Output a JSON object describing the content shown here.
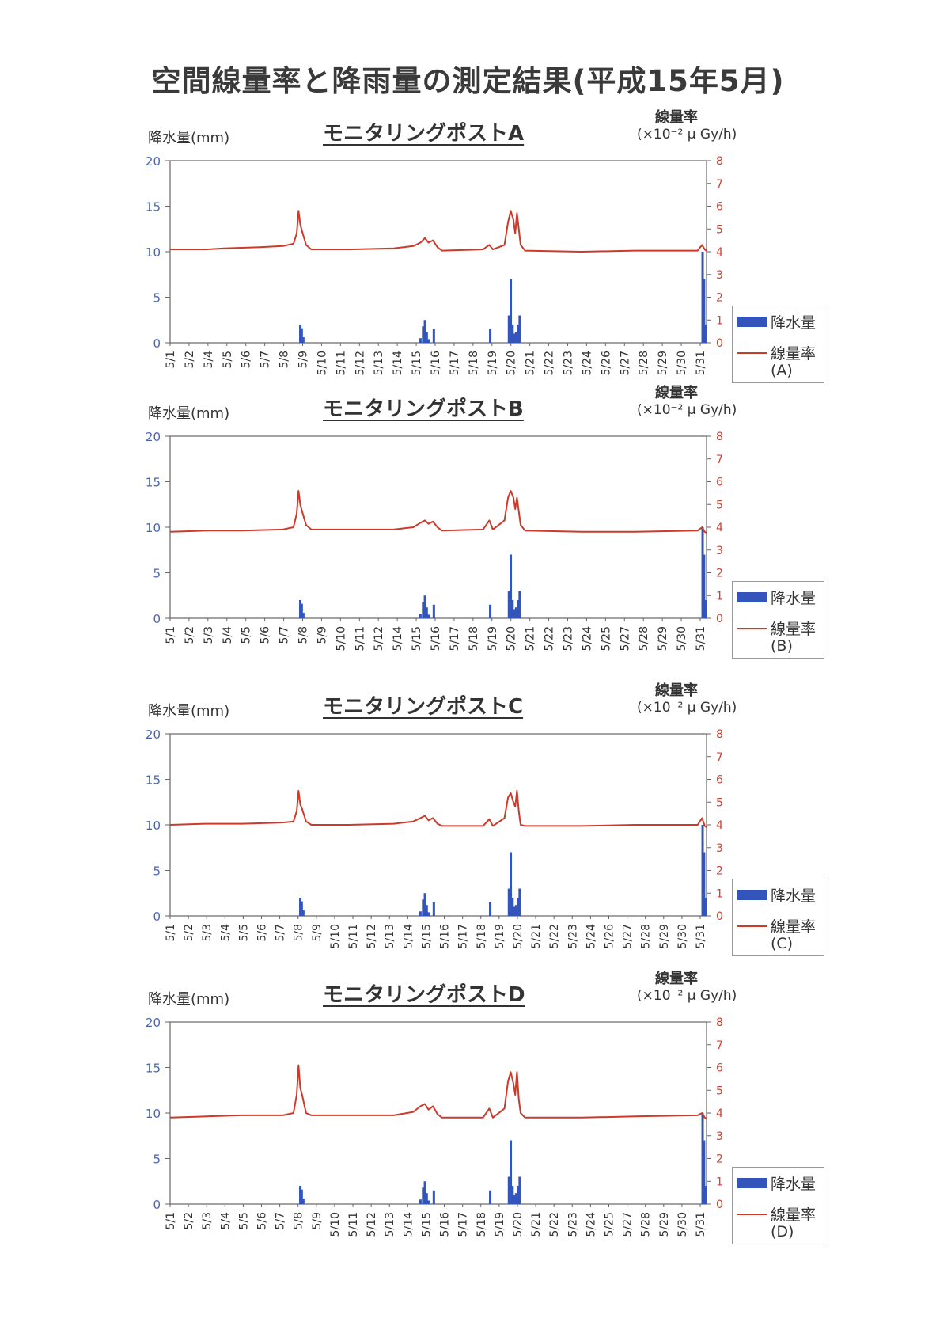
{
  "title": "空間線量率と降雨量の測定結果(平成15年5月)",
  "left_axis_label": "降水量(mm)",
  "right_axis_label": "線量率",
  "right_axis_unit": "(×10⁻² μ Gy/h)",
  "legend_rain": "降水量",
  "legend_dose": "線量率",
  "colors": {
    "rain": "#3355bb",
    "dose": "#cc3a2a",
    "left_ticks": "#4466bb",
    "right_ticks": "#cc4433"
  },
  "chart_data": [
    {
      "type": "bar+line",
      "title": "モニタリングポストA",
      "legend_tag": "(A)",
      "categories": [
        "5/1",
        "5/2",
        "5/4",
        "5/5",
        "5/6",
        "5/7",
        "5/8",
        "5/9",
        "5/10",
        "5/11",
        "5/12",
        "5/13",
        "5/14",
        "5/15",
        "5/16",
        "5/17",
        "5/18",
        "5/19",
        "5/20",
        "5/21",
        "5/22",
        "5/23",
        "5/24",
        "5/26",
        "5/27",
        "5/28",
        "5/29",
        "5/30",
        "5/31"
      ],
      "left_ylim": [
        0,
        20
      ],
      "left_ticks": [
        0,
        5,
        10,
        15,
        20
      ],
      "right_ylim": [
        0,
        8
      ],
      "right_ticks": [
        0,
        1,
        2,
        3,
        4,
        5,
        6,
        7,
        8
      ],
      "grid": false,
      "legend": "right",
      "rain_bars": [
        {
          "x": 7.28,
          "v": 2
        },
        {
          "x": 7.36,
          "v": 1.6
        },
        {
          "x": 7.45,
          "v": 0.6
        },
        {
          "x": 14.0,
          "v": 0.5
        },
        {
          "x": 14.15,
          "v": 1.8
        },
        {
          "x": 14.25,
          "v": 2.5
        },
        {
          "x": 14.35,
          "v": 1.2
        },
        {
          "x": 14.45,
          "v": 0.4
        },
        {
          "x": 14.75,
          "v": 1.5
        },
        {
          "x": 17.9,
          "v": 1.5
        },
        {
          "x": 18.95,
          "v": 3
        },
        {
          "x": 19.05,
          "v": 7
        },
        {
          "x": 19.15,
          "v": 2
        },
        {
          "x": 19.25,
          "v": 1
        },
        {
          "x": 19.35,
          "v": 1.2
        },
        {
          "x": 19.45,
          "v": 2
        },
        {
          "x": 19.55,
          "v": 3
        },
        {
          "x": 29.78,
          "v": 10
        },
        {
          "x": 29.86,
          "v": 7
        },
        {
          "x": 29.93,
          "v": 2
        }
      ],
      "dose_line": [
        [
          0.0,
          4.1
        ],
        [
          2.0,
          4.1
        ],
        [
          3.0,
          4.15
        ],
        [
          5.0,
          4.2
        ],
        [
          6.3,
          4.25
        ],
        [
          6.9,
          4.35
        ],
        [
          7.08,
          4.8
        ],
        [
          7.18,
          5.8
        ],
        [
          7.28,
          5.2
        ],
        [
          7.38,
          4.9
        ],
        [
          7.6,
          4.3
        ],
        [
          7.9,
          4.1
        ],
        [
          10.0,
          4.1
        ],
        [
          12.5,
          4.15
        ],
        [
          13.6,
          4.25
        ],
        [
          14.0,
          4.4
        ],
        [
          14.25,
          4.6
        ],
        [
          14.45,
          4.4
        ],
        [
          14.7,
          4.5
        ],
        [
          14.95,
          4.2
        ],
        [
          15.2,
          4.05
        ],
        [
          17.5,
          4.1
        ],
        [
          17.85,
          4.3
        ],
        [
          18.05,
          4.1
        ],
        [
          18.7,
          4.3
        ],
        [
          18.9,
          5.3
        ],
        [
          19.05,
          5.8
        ],
        [
          19.2,
          5.4
        ],
        [
          19.3,
          4.8
        ],
        [
          19.4,
          5.7
        ],
        [
          19.5,
          5.0
        ],
        [
          19.6,
          4.3
        ],
        [
          19.85,
          4.05
        ],
        [
          23.0,
          4.0
        ],
        [
          26.0,
          4.05
        ],
        [
          29.5,
          4.05
        ],
        [
          29.75,
          4.3
        ],
        [
          29.9,
          4.1
        ],
        [
          30.0,
          4.05
        ]
      ]
    },
    {
      "type": "bar+line",
      "title": "モニタリングポストB",
      "legend_tag": "(B)",
      "categories": [
        "5/1",
        "5/2",
        "5/3",
        "5/4",
        "5/5",
        "5/6",
        "5/7",
        "5/8",
        "5/9",
        "5/10",
        "5/11",
        "5/12",
        "5/14",
        "5/15",
        "5/16",
        "5/17",
        "5/18",
        "5/19",
        "5/20",
        "5/21",
        "5/22",
        "5/23",
        "5/24",
        "5/25",
        "5/27",
        "5/28",
        "5/29",
        "5/30",
        "5/31"
      ],
      "left_ylim": [
        0,
        20
      ],
      "left_ticks": [
        0,
        5,
        10,
        15,
        20
      ],
      "right_ylim": [
        0,
        8
      ],
      "right_ticks": [
        0,
        1,
        2,
        3,
        4,
        5,
        6,
        7,
        8
      ],
      "grid": false,
      "legend": "right",
      "rain_bars": [
        {
          "x": 7.28,
          "v": 2
        },
        {
          "x": 7.36,
          "v": 1.6
        },
        {
          "x": 7.45,
          "v": 0.6
        },
        {
          "x": 14.0,
          "v": 0.5
        },
        {
          "x": 14.15,
          "v": 1.8
        },
        {
          "x": 14.25,
          "v": 2.5
        },
        {
          "x": 14.35,
          "v": 1.2
        },
        {
          "x": 14.45,
          "v": 0.4
        },
        {
          "x": 14.75,
          "v": 1.5
        },
        {
          "x": 17.9,
          "v": 1.5
        },
        {
          "x": 18.95,
          "v": 3
        },
        {
          "x": 19.05,
          "v": 7
        },
        {
          "x": 19.15,
          "v": 2
        },
        {
          "x": 19.25,
          "v": 1
        },
        {
          "x": 19.35,
          "v": 1.2
        },
        {
          "x": 19.45,
          "v": 2
        },
        {
          "x": 19.55,
          "v": 3
        },
        {
          "x": 29.78,
          "v": 10
        },
        {
          "x": 29.86,
          "v": 7
        },
        {
          "x": 29.93,
          "v": 2
        }
      ],
      "dose_line": [
        [
          0.0,
          3.8
        ],
        [
          2.0,
          3.85
        ],
        [
          4.0,
          3.85
        ],
        [
          6.3,
          3.9
        ],
        [
          6.9,
          4.0
        ],
        [
          7.08,
          4.6
        ],
        [
          7.18,
          5.6
        ],
        [
          7.28,
          5.0
        ],
        [
          7.38,
          4.7
        ],
        [
          7.6,
          4.1
        ],
        [
          7.9,
          3.9
        ],
        [
          10.0,
          3.9
        ],
        [
          12.5,
          3.9
        ],
        [
          13.6,
          4.0
        ],
        [
          14.0,
          4.2
        ],
        [
          14.25,
          4.3
        ],
        [
          14.45,
          4.15
        ],
        [
          14.7,
          4.25
        ],
        [
          14.95,
          4.0
        ],
        [
          15.2,
          3.85
        ],
        [
          17.5,
          3.9
        ],
        [
          17.85,
          4.3
        ],
        [
          18.05,
          3.9
        ],
        [
          18.7,
          4.3
        ],
        [
          18.9,
          5.3
        ],
        [
          19.05,
          5.6
        ],
        [
          19.2,
          5.3
        ],
        [
          19.3,
          4.8
        ],
        [
          19.4,
          5.3
        ],
        [
          19.5,
          4.7
        ],
        [
          19.6,
          4.1
        ],
        [
          19.85,
          3.85
        ],
        [
          23.0,
          3.8
        ],
        [
          26.0,
          3.8
        ],
        [
          29.5,
          3.85
        ],
        [
          29.75,
          4.0
        ],
        [
          29.9,
          3.8
        ],
        [
          30.0,
          3.75
        ]
      ]
    },
    {
      "type": "bar+line",
      "title": "モニタリングポストC",
      "legend_tag": "(C)",
      "categories": [
        "5/1",
        "5/2",
        "5/3",
        "5/4",
        "5/5",
        "5/6",
        "5/7",
        "5/8",
        "5/9",
        "5/10",
        "5/11",
        "5/12",
        "5/13",
        "5/14",
        "5/15",
        "5/16",
        "5/17",
        "5/18",
        "5/19",
        "5/20",
        "5/21",
        "5/22",
        "5/23",
        "5/24",
        "5/26",
        "5/27",
        "5/28",
        "5/29",
        "5/30",
        "5/31"
      ],
      "left_ylim": [
        0,
        20
      ],
      "left_ticks": [
        0,
        5,
        10,
        15,
        20
      ],
      "right_ylim": [
        0,
        8
      ],
      "right_ticks": [
        0,
        1,
        2,
        3,
        4,
        5,
        6,
        7,
        8
      ],
      "grid": false,
      "legend": "right",
      "rain_bars": [
        {
          "x": 7.28,
          "v": 2
        },
        {
          "x": 7.36,
          "v": 1.6
        },
        {
          "x": 7.45,
          "v": 0.6
        },
        {
          "x": 14.0,
          "v": 0.5
        },
        {
          "x": 14.15,
          "v": 1.8
        },
        {
          "x": 14.25,
          "v": 2.5
        },
        {
          "x": 14.35,
          "v": 1.2
        },
        {
          "x": 14.45,
          "v": 0.4
        },
        {
          "x": 14.75,
          "v": 1.5
        },
        {
          "x": 17.9,
          "v": 1.5
        },
        {
          "x": 18.95,
          "v": 3
        },
        {
          "x": 19.05,
          "v": 7
        },
        {
          "x": 19.15,
          "v": 2
        },
        {
          "x": 19.25,
          "v": 1
        },
        {
          "x": 19.35,
          "v": 1.2
        },
        {
          "x": 19.45,
          "v": 2
        },
        {
          "x": 19.55,
          "v": 3
        },
        {
          "x": 29.78,
          "v": 10
        },
        {
          "x": 29.86,
          "v": 7
        },
        {
          "x": 29.93,
          "v": 2
        }
      ],
      "dose_line": [
        [
          0.0,
          4.0
        ],
        [
          2.0,
          4.05
        ],
        [
          4.0,
          4.05
        ],
        [
          6.3,
          4.1
        ],
        [
          6.9,
          4.15
        ],
        [
          7.08,
          4.6
        ],
        [
          7.18,
          5.5
        ],
        [
          7.28,
          4.9
        ],
        [
          7.38,
          4.7
        ],
        [
          7.6,
          4.15
        ],
        [
          7.9,
          4.0
        ],
        [
          10.0,
          4.0
        ],
        [
          12.5,
          4.05
        ],
        [
          13.6,
          4.15
        ],
        [
          14.0,
          4.3
        ],
        [
          14.25,
          4.4
        ],
        [
          14.45,
          4.2
        ],
        [
          14.7,
          4.3
        ],
        [
          14.95,
          4.05
        ],
        [
          15.2,
          3.95
        ],
        [
          17.5,
          3.95
        ],
        [
          17.85,
          4.25
        ],
        [
          18.05,
          3.95
        ],
        [
          18.7,
          4.3
        ],
        [
          18.9,
          5.2
        ],
        [
          19.05,
          5.4
        ],
        [
          19.2,
          5.0
        ],
        [
          19.3,
          4.8
        ],
        [
          19.4,
          5.5
        ],
        [
          19.5,
          4.6
        ],
        [
          19.6,
          4.0
        ],
        [
          19.85,
          3.95
        ],
        [
          23.0,
          3.95
        ],
        [
          26.0,
          4.0
        ],
        [
          29.5,
          4.0
        ],
        [
          29.75,
          4.3
        ],
        [
          29.9,
          3.95
        ],
        [
          30.0,
          3.9
        ]
      ]
    },
    {
      "type": "bar+line",
      "title": "モニタリングポストD",
      "legend_tag": "(D)",
      "categories": [
        "5/1",
        "5/2",
        "5/3",
        "5/4",
        "5/5",
        "5/6",
        "5/7",
        "5/8",
        "5/9",
        "5/10",
        "5/11",
        "5/12",
        "5/13",
        "5/14",
        "5/15",
        "5/16",
        "5/17",
        "5/18",
        "5/19",
        "5/20",
        "5/21",
        "5/22",
        "5/23",
        "5/24",
        "5/25",
        "5/27",
        "5/28",
        "5/29",
        "5/30",
        "5/31"
      ],
      "left_ylim": [
        0,
        20
      ],
      "left_ticks": [
        0,
        5,
        10,
        15,
        20
      ],
      "right_ylim": [
        0,
        8
      ],
      "right_ticks": [
        0,
        1,
        2,
        3,
        4,
        5,
        6,
        7,
        8
      ],
      "grid": false,
      "legend": "right",
      "rain_bars": [
        {
          "x": 7.28,
          "v": 2
        },
        {
          "x": 7.36,
          "v": 1.6
        },
        {
          "x": 7.45,
          "v": 0.6
        },
        {
          "x": 14.0,
          "v": 0.5
        },
        {
          "x": 14.15,
          "v": 1.8
        },
        {
          "x": 14.25,
          "v": 2.5
        },
        {
          "x": 14.35,
          "v": 1.2
        },
        {
          "x": 14.45,
          "v": 0.4
        },
        {
          "x": 14.75,
          "v": 1.5
        },
        {
          "x": 17.9,
          "v": 1.5
        },
        {
          "x": 18.95,
          "v": 3
        },
        {
          "x": 19.05,
          "v": 7
        },
        {
          "x": 19.15,
          "v": 2
        },
        {
          "x": 19.25,
          "v": 1
        },
        {
          "x": 19.35,
          "v": 1.2
        },
        {
          "x": 19.45,
          "v": 2
        },
        {
          "x": 19.55,
          "v": 3
        },
        {
          "x": 29.78,
          "v": 10
        },
        {
          "x": 29.86,
          "v": 7
        },
        {
          "x": 29.93,
          "v": 2
        }
      ],
      "dose_line": [
        [
          0.0,
          3.8
        ],
        [
          2.0,
          3.85
        ],
        [
          4.0,
          3.9
        ],
        [
          6.3,
          3.9
        ],
        [
          6.9,
          4.0
        ],
        [
          7.08,
          4.8
        ],
        [
          7.18,
          6.1
        ],
        [
          7.28,
          5.1
        ],
        [
          7.38,
          4.8
        ],
        [
          7.6,
          4.0
        ],
        [
          7.9,
          3.9
        ],
        [
          10.0,
          3.9
        ],
        [
          12.5,
          3.9
        ],
        [
          13.6,
          4.05
        ],
        [
          14.0,
          4.3
        ],
        [
          14.25,
          4.4
        ],
        [
          14.45,
          4.15
        ],
        [
          14.7,
          4.3
        ],
        [
          14.95,
          3.95
        ],
        [
          15.2,
          3.8
        ],
        [
          17.5,
          3.8
        ],
        [
          17.85,
          4.2
        ],
        [
          18.05,
          3.8
        ],
        [
          18.7,
          4.2
        ],
        [
          18.9,
          5.4
        ],
        [
          19.05,
          5.8
        ],
        [
          19.2,
          5.3
        ],
        [
          19.3,
          4.8
        ],
        [
          19.4,
          5.8
        ],
        [
          19.5,
          4.6
        ],
        [
          19.6,
          4.0
        ],
        [
          19.85,
          3.8
        ],
        [
          23.0,
          3.8
        ],
        [
          26.0,
          3.85
        ],
        [
          29.5,
          3.9
        ],
        [
          29.75,
          4.0
        ],
        [
          29.9,
          3.8
        ],
        [
          30.0,
          3.75
        ]
      ]
    }
  ]
}
